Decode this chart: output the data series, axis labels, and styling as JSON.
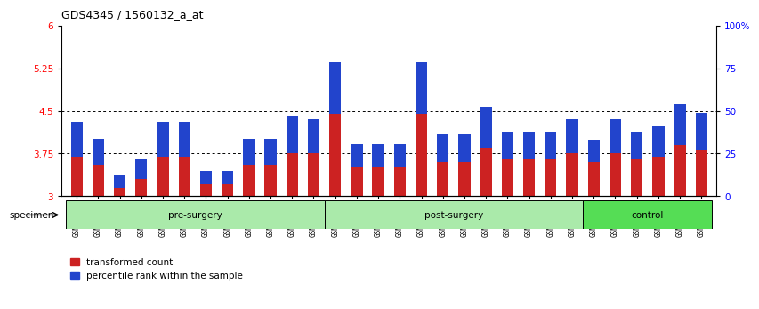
{
  "title": "GDS4345 / 1560132_a_at",
  "categories": [
    "GSM842012",
    "GSM842013",
    "GSM842014",
    "GSM842015",
    "GSM842016",
    "GSM842017",
    "GSM842018",
    "GSM842019",
    "GSM842020",
    "GSM842021",
    "GSM842022",
    "GSM842023",
    "GSM842024",
    "GSM842025",
    "GSM842026",
    "GSM842027",
    "GSM842028",
    "GSM842029",
    "GSM842030",
    "GSM842031",
    "GSM842032",
    "GSM842033",
    "GSM842034",
    "GSM842035",
    "GSM842036",
    "GSM842037",
    "GSM842038",
    "GSM842039",
    "GSM842040",
    "GSM842041"
  ],
  "red_values": [
    3.7,
    3.55,
    3.15,
    3.3,
    3.7,
    3.7,
    3.2,
    3.2,
    3.55,
    3.55,
    3.75,
    3.75,
    4.45,
    3.5,
    3.5,
    3.5,
    4.45,
    3.6,
    3.6,
    3.85,
    3.65,
    3.65,
    3.65,
    3.75,
    3.6,
    3.75,
    3.65,
    3.7,
    3.9,
    3.8
  ],
  "blue_percentiles": [
    20,
    15,
    7,
    12,
    20,
    20,
    8,
    8,
    15,
    15,
    22,
    20,
    30,
    14,
    14,
    14,
    30,
    16,
    16,
    24,
    16,
    16,
    16,
    20,
    13,
    20,
    16,
    18,
    24,
    22
  ],
  "groups": [
    {
      "label": "pre-surgery",
      "start": 0,
      "end": 12,
      "color": "#aaeaaa"
    },
    {
      "label": "post-surgery",
      "start": 12,
      "end": 24,
      "color": "#aaeaaa"
    },
    {
      "label": "control",
      "start": 24,
      "end": 30,
      "color": "#55dd55"
    }
  ],
  "ylim_left": [
    3.0,
    6.0
  ],
  "ylim_right": [
    0,
    100
  ],
  "yticks_left": [
    3.0,
    3.75,
    4.5,
    5.25,
    6.0
  ],
  "ytick_labels_left": [
    "3",
    "3.75",
    "4.5",
    "5.25",
    "6"
  ],
  "yticks_right": [
    0,
    25,
    50,
    75,
    100
  ],
  "ytick_labels_right": [
    "0",
    "25",
    "50",
    "75",
    "100%"
  ],
  "hlines": [
    3.75,
    4.5,
    5.25
  ],
  "bar_color_red": "#cc2222",
  "bar_color_blue": "#2244cc",
  "bar_width": 0.55,
  "legend_red": "transformed count",
  "legend_blue": "percentile rank within the sample",
  "specimen_label": "specimen"
}
